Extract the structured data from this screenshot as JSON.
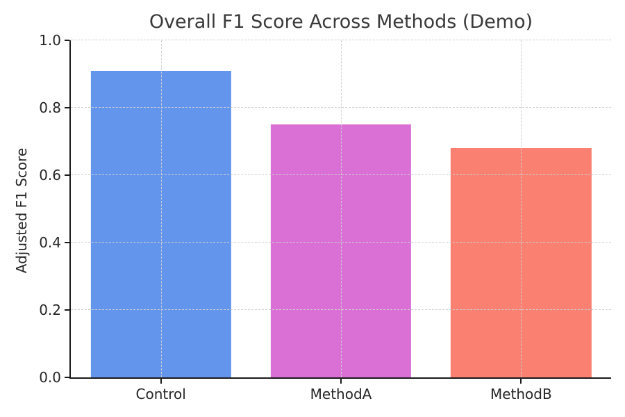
{
  "page": {
    "background": "#ffffff"
  },
  "chart_data": {
    "type": "bar",
    "title": "Overall F1 Score Across Methods (Demo)",
    "xlabel": "",
    "ylabel": "Adjusted F1 Score",
    "categories": [
      "Control",
      "MethodA",
      "MethodB"
    ],
    "values": [
      0.91,
      0.75,
      0.68
    ],
    "bar_colors": [
      "#6495ED",
      "#DA70D6",
      "#FA8072"
    ],
    "ylim": [
      0.0,
      1.0
    ],
    "yticks": [
      0.0,
      0.2,
      0.4,
      0.6,
      0.8,
      1.0
    ],
    "ytick_labels": [
      "0.0",
      "0.2",
      "0.4",
      "0.6",
      "0.8",
      "1.0"
    ],
    "grid": "both",
    "grid_style": "dashed",
    "grid_color": "#cfcfcf",
    "grid_above_bars": true,
    "legend": "none",
    "bar_width_fraction": 0.78,
    "axis_color": "#1a1a1a",
    "tick_text_color": "#262626",
    "title_color": "#3a3a3a"
  }
}
